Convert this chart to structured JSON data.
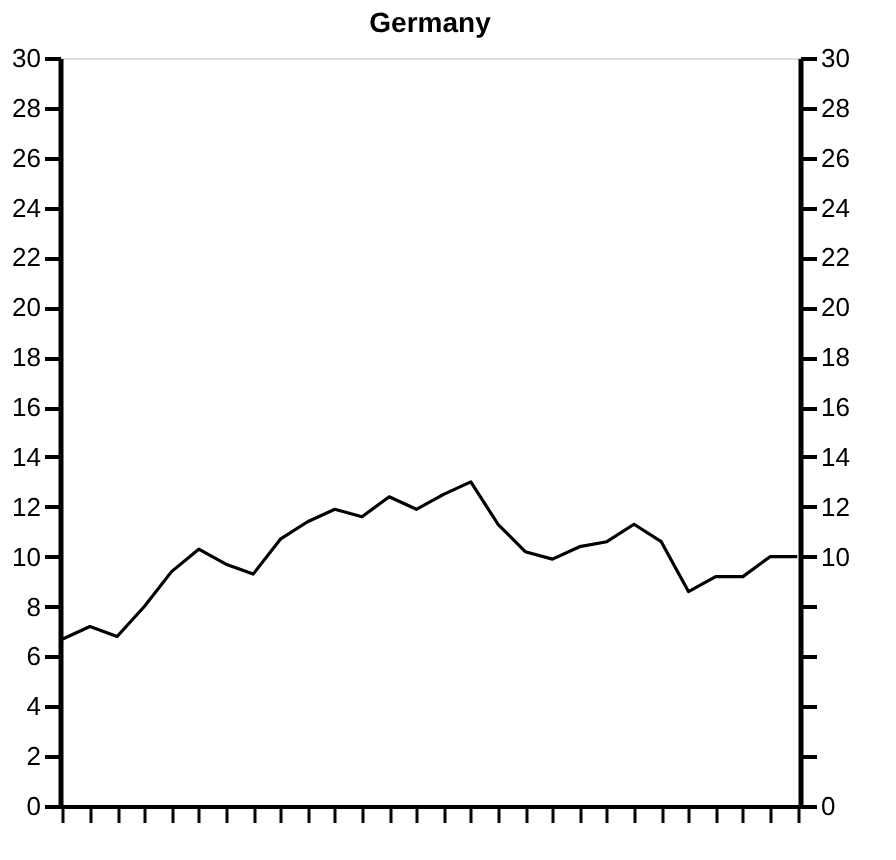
{
  "chart_data": {
    "type": "line",
    "title": "Germany",
    "categories": [
      null,
      null,
      null,
      null,
      null,
      null,
      null,
      null,
      null,
      null,
      null,
      null,
      null,
      null,
      null,
      null,
      null,
      null,
      null,
      null,
      null,
      null,
      null,
      null,
      null,
      null,
      null,
      null
    ],
    "series": [
      {
        "color": "#000000",
        "values": [
          6.7,
          7.2,
          6.8,
          8.0,
          9.4,
          10.3,
          9.7,
          9.3,
          10.7,
          11.4,
          11.9,
          11.6,
          12.4,
          11.9,
          12.5,
          13.0,
          11.3,
          10.2,
          9.9,
          10.4,
          10.6,
          11.3,
          10.6,
          8.6,
          9.2,
          9.2,
          10.0,
          10.0
        ]
      }
    ],
    "ylim": [
      0,
      30
    ],
    "yticks": [
      0,
      2,
      4,
      6,
      8,
      10,
      12,
      14,
      16,
      18,
      20,
      22,
      24,
      26,
      28,
      30
    ],
    "y2lim": [
      0,
      30
    ],
    "y2ticks": [
      0,
      {
        "value": 2,
        "label": null
      },
      {
        "value": 4,
        "label": null
      },
      {
        "value": 6,
        "label": null
      },
      {
        "value": 8,
        "label": null
      },
      10,
      12,
      14,
      16,
      18,
      20,
      22,
      24,
      26,
      28,
      30
    ],
    "tick_labels": "y",
    "grid": false,
    "marker": "none",
    "line_style": "solid"
  }
}
